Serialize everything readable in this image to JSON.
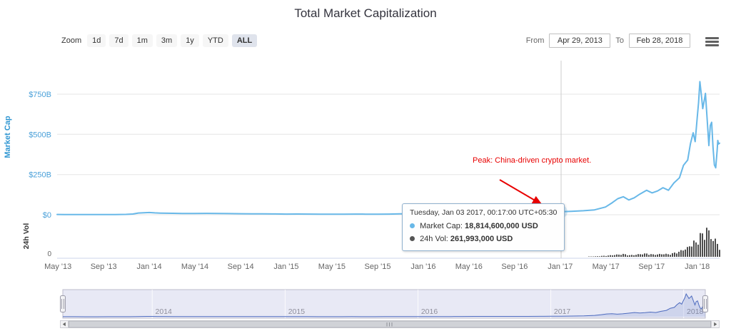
{
  "title": "Total Market Capitalization",
  "range_selector": {
    "zoom_label": "Zoom",
    "buttons": [
      {
        "label": "1d",
        "selected": false
      },
      {
        "label": "7d",
        "selected": false
      },
      {
        "label": "1m",
        "selected": false
      },
      {
        "label": "3m",
        "selected": false
      },
      {
        "label": "1y",
        "selected": false
      },
      {
        "label": "YTD",
        "selected": false
      },
      {
        "label": "ALL",
        "selected": true
      }
    ],
    "from_label": "From",
    "from_value": "Apr 29, 2013",
    "to_label": "To",
    "to_value": "Feb 28, 2018"
  },
  "export_menu": {
    "icon": "hamburger-icon"
  },
  "tooltip": {
    "header": "Tuesday, Jan 03 2017, 00:17:00 UTC+05:30",
    "rows": [
      {
        "label": "Market Cap:",
        "value": "18,814,600,000 USD",
        "color": "#68b8e8"
      },
      {
        "label": "24h Vol:",
        "value": "261,993,000 USD",
        "color": "#555555"
      }
    ]
  },
  "annotation": {
    "text": "Peak: China-driven crypto market.",
    "color": "#e80000"
  },
  "colors": {
    "market_cap_line": "#68b8e8",
    "volume_bars": "#4d4d4d",
    "y_axis_labels": "#4aa0d9",
    "x_axis_labels": "#666666",
    "gridline": "#e6e6e6",
    "navigator_fill": "rgba(110,120,195,0.16)",
    "navigator_line": "#4d6bbf",
    "annotation_red": "#e80000"
  },
  "chart_data": {
    "type": "line",
    "title": "Total Market Capitalization",
    "units": "billion USD",
    "x_range": [
      2013.327,
      2018.163
    ],
    "ylim": [
      0,
      850
    ],
    "y_axis": {
      "title": "Market Cap",
      "tick_values": [
        0,
        250,
        500,
        750
      ],
      "tick_labels": [
        "$0",
        "$250B",
        "$500B",
        "$750B"
      ]
    },
    "volume_axis": {
      "title": "24h Vol",
      "tick_labels": [
        "0"
      ]
    },
    "x_axis": {
      "ticks": [
        [
          "May '13",
          2013.333
        ],
        [
          "Sep '13",
          2013.667
        ],
        [
          "Jan '14",
          2014
        ],
        [
          "May '14",
          2014.333
        ],
        [
          "Sep '14",
          2014.667
        ],
        [
          "Jan '15",
          2015
        ],
        [
          "May '15",
          2015.333
        ],
        [
          "Sep '15",
          2015.667
        ],
        [
          "Jan '16",
          2016
        ],
        [
          "May '16",
          2016.333
        ],
        [
          "Sep '16",
          2016.667
        ],
        [
          "Jan '17",
          2017
        ],
        [
          "May '17",
          2017.333
        ],
        [
          "Sep '17",
          2017.667
        ],
        [
          "Jan '18",
          2018
        ]
      ]
    },
    "crosshair_x": 2017.006,
    "marker": {
      "x": 2017.006,
      "y": 18.81
    },
    "navigator": {
      "years": [
        [
          "2014",
          2014
        ],
        [
          "2015",
          2015
        ],
        [
          "2016",
          2016
        ],
        [
          "2017",
          2017
        ],
        [
          "2018",
          2018
        ]
      ]
    },
    "series": [
      {
        "name": "Market Cap",
        "type": "line",
        "color": "#68b8e8",
        "points": [
          [
            2013.327,
            1.6
          ],
          [
            2013.38,
            1.5
          ],
          [
            2013.42,
            1.4
          ],
          [
            2013.5,
            1.2
          ],
          [
            2013.58,
            1.1
          ],
          [
            2013.67,
            1.3
          ],
          [
            2013.75,
            1.5
          ],
          [
            2013.83,
            2.4
          ],
          [
            2013.88,
            4.5
          ],
          [
            2013.92,
            10.5
          ],
          [
            2013.96,
            12.5
          ],
          [
            2014.0,
            13.8
          ],
          [
            2014.04,
            11.5
          ],
          [
            2014.08,
            10.2
          ],
          [
            2014.17,
            9.0
          ],
          [
            2014.25,
            7.6
          ],
          [
            2014.33,
            7.9
          ],
          [
            2014.42,
            8.6
          ],
          [
            2014.5,
            8.2
          ],
          [
            2014.58,
            7.1
          ],
          [
            2014.67,
            6.1
          ],
          [
            2014.75,
            5.2
          ],
          [
            2014.83,
            5.4
          ],
          [
            2014.92,
            4.9
          ],
          [
            2015.0,
            4.0
          ],
          [
            2015.08,
            4.4
          ],
          [
            2015.17,
            4.1
          ],
          [
            2015.25,
            3.7
          ],
          [
            2015.33,
            3.6
          ],
          [
            2015.42,
            3.7
          ],
          [
            2015.5,
            4.0
          ],
          [
            2015.58,
            3.6
          ],
          [
            2015.67,
            3.5
          ],
          [
            2015.75,
            4.2
          ],
          [
            2015.83,
            5.4
          ],
          [
            2015.92,
            6.4
          ],
          [
            2016.0,
            6.6
          ],
          [
            2016.08,
            7.7
          ],
          [
            2016.17,
            8.4
          ],
          [
            2016.25,
            8.9
          ],
          [
            2016.33,
            9.6
          ],
          [
            2016.42,
            12.2
          ],
          [
            2016.5,
            12.7
          ],
          [
            2016.58,
            11.7
          ],
          [
            2016.67,
            12.2
          ],
          [
            2016.75,
            12.6
          ],
          [
            2016.83,
            13.8
          ],
          [
            2016.92,
            15.6
          ],
          [
            2017.006,
            18.81
          ],
          [
            2017.08,
            21.5
          ],
          [
            2017.17,
            25
          ],
          [
            2017.25,
            30
          ],
          [
            2017.33,
            48
          ],
          [
            2017.38,
            75
          ],
          [
            2017.42,
            100
          ],
          [
            2017.46,
            112
          ],
          [
            2017.5,
            92
          ],
          [
            2017.54,
            105
          ],
          [
            2017.58,
            128
          ],
          [
            2017.63,
            152
          ],
          [
            2017.67,
            136
          ],
          [
            2017.71,
            148
          ],
          [
            2017.75,
            168
          ],
          [
            2017.79,
            152
          ],
          [
            2017.83,
            198
          ],
          [
            2017.87,
            230
          ],
          [
            2017.9,
            308
          ],
          [
            2017.93,
            340
          ],
          [
            2017.95,
            440
          ],
          [
            2017.97,
            510
          ],
          [
            2017.985,
            455
          ],
          [
            2018.0,
            605
          ],
          [
            2018.01,
            700
          ],
          [
            2018.019,
            828
          ],
          [
            2018.03,
            745
          ],
          [
            2018.04,
            660
          ],
          [
            2018.05,
            705
          ],
          [
            2018.06,
            755
          ],
          [
            2018.075,
            560
          ],
          [
            2018.085,
            430
          ],
          [
            2018.095,
            555
          ],
          [
            2018.105,
            575
          ],
          [
            2018.115,
            420
          ],
          [
            2018.125,
            310
          ],
          [
            2018.135,
            292
          ],
          [
            2018.145,
            395
          ],
          [
            2018.15,
            462
          ],
          [
            2018.155,
            440
          ],
          [
            2018.163,
            445
          ]
        ]
      },
      {
        "name": "24h Vol",
        "type": "column",
        "color": "#4d4d4d",
        "points": [
          [
            2013.327,
            0.03
          ],
          [
            2013.5,
            0.02
          ],
          [
            2013.75,
            0.05
          ],
          [
            2013.92,
            0.15
          ],
          [
            2014.0,
            0.2
          ],
          [
            2014.25,
            0.08
          ],
          [
            2014.5,
            0.06
          ],
          [
            2014.75,
            0.05
          ],
          [
            2015.0,
            0.06
          ],
          [
            2015.25,
            0.05
          ],
          [
            2015.5,
            0.06
          ],
          [
            2015.75,
            0.08
          ],
          [
            2016.0,
            0.12
          ],
          [
            2016.25,
            0.15
          ],
          [
            2016.42,
            0.25
          ],
          [
            2016.58,
            0.18
          ],
          [
            2016.75,
            0.2
          ],
          [
            2016.92,
            0.22
          ],
          [
            2017.006,
            0.262
          ],
          [
            2017.08,
            0.35
          ],
          [
            2017.17,
            0.5
          ],
          [
            2017.25,
            0.9
          ],
          [
            2017.33,
            2.2
          ],
          [
            2017.38,
            3.5
          ],
          [
            2017.42,
            4.5
          ],
          [
            2017.46,
            5.5
          ],
          [
            2017.5,
            3.2
          ],
          [
            2017.54,
            4.0
          ],
          [
            2017.58,
            5.5
          ],
          [
            2017.63,
            6.5
          ],
          [
            2017.67,
            4.5
          ],
          [
            2017.71,
            5.0
          ],
          [
            2017.75,
            6.0
          ],
          [
            2017.79,
            5.0
          ],
          [
            2017.83,
            8.0
          ],
          [
            2017.87,
            11
          ],
          [
            2017.9,
            16
          ],
          [
            2017.93,
            18
          ],
          [
            2017.95,
            26
          ],
          [
            2017.97,
            30
          ],
          [
            2017.985,
            27
          ],
          [
            2018.0,
            34
          ],
          [
            2018.01,
            42
          ],
          [
            2018.019,
            48
          ],
          [
            2018.03,
            44
          ],
          [
            2018.04,
            38
          ],
          [
            2018.05,
            42
          ],
          [
            2018.06,
            68
          ],
          [
            2018.075,
            50
          ],
          [
            2018.085,
            44
          ],
          [
            2018.095,
            38
          ],
          [
            2018.105,
            36
          ],
          [
            2018.115,
            42
          ],
          [
            2018.125,
            34
          ],
          [
            2018.135,
            28
          ],
          [
            2018.145,
            24
          ],
          [
            2018.15,
            22
          ],
          [
            2018.163,
            20
          ]
        ]
      }
    ]
  }
}
